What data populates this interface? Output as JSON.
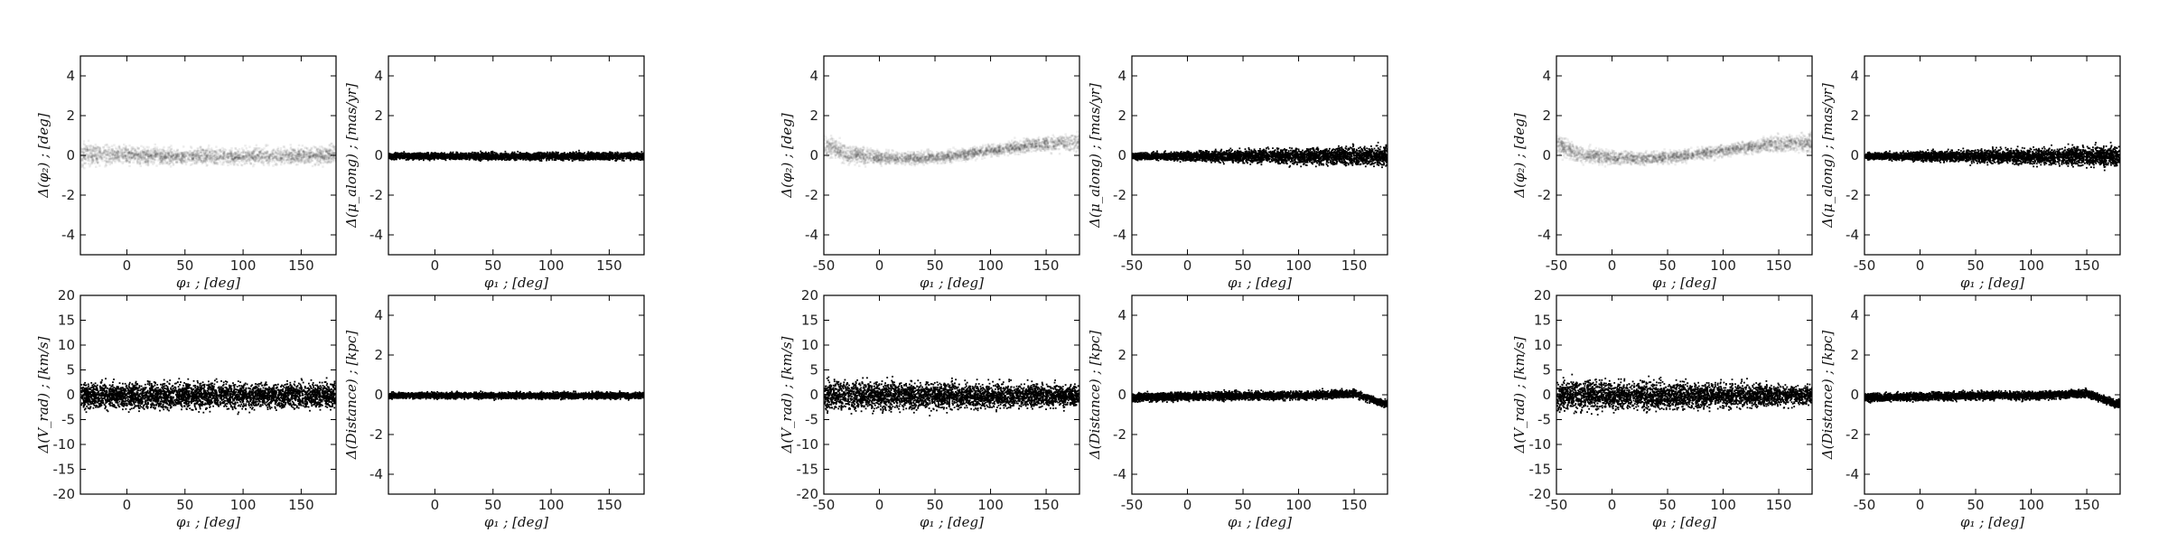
{
  "figure": {
    "label_phi1": "φ₁ ; [deg]",
    "label_dphi2": "Δ(φ₂) ; [deg]",
    "label_dmu": "Δ(μ_along) ; [mas/yr]",
    "label_dvrad": "Δ(V_rad) ; [km/s]",
    "label_ddist": "Δ(Distance) ; [kpc]"
  },
  "chart_data": [
    {
      "type": "heatmap",
      "group": 1,
      "panel": "phi2-residual",
      "xlabel": "φ₁ ; [deg]",
      "ylabel": "Δ(φ₂) ; [deg]",
      "xlim": [
        -40,
        180
      ],
      "ylim": [
        -5,
        5
      ],
      "xticks": [
        0,
        50,
        100,
        150
      ],
      "yticks": [
        -4,
        -2,
        0,
        2,
        4
      ],
      "residual_curve": {
        "x": [
          -40,
          0,
          50,
          100,
          150,
          180
        ],
        "y": [
          0.1,
          0.05,
          0,
          0,
          0.05,
          0.1
        ]
      },
      "spread": [
        0.6,
        0.4,
        0.4,
        0.4,
        0.4,
        0.5
      ]
    },
    {
      "type": "scatter",
      "group": 1,
      "panel": "mu-along-residual",
      "xlabel": "φ₁ ; [deg]",
      "ylabel": "Δ(μ_along) ; [mas/yr]",
      "xlim": [
        -40,
        180
      ],
      "ylim": [
        -5,
        5
      ],
      "xticks": [
        0,
        50,
        100,
        150
      ],
      "yticks": [
        -4,
        -2,
        0,
        2,
        4
      ],
      "residual_curve": {
        "x": [
          -40,
          180
        ],
        "y": [
          0,
          0
        ]
      },
      "spread": [
        0.15,
        0.2
      ]
    },
    {
      "type": "scatter",
      "group": 1,
      "panel": "vrad-residual",
      "xlabel": "φ₁ ; [deg]",
      "ylabel": "Δ(V_rad) ; [km/s]",
      "xlim": [
        -40,
        180
      ],
      "ylim": [
        -20,
        20
      ],
      "xticks": [
        0,
        50,
        100,
        150
      ],
      "yticks": [
        -20,
        -15,
        -10,
        -5,
        0,
        5,
        10,
        15,
        20
      ],
      "residual_curve": {
        "x": [
          -40,
          180
        ],
        "y": [
          0,
          0
        ]
      },
      "spread": [
        2.5,
        2.5
      ]
    },
    {
      "type": "scatter",
      "group": 1,
      "panel": "distance-residual",
      "xlabel": "φ₁ ; [deg]",
      "ylabel": "Δ(Distance) ; [kpc]",
      "xlim": [
        -40,
        180
      ],
      "ylim": [
        -5,
        5
      ],
      "xticks": [
        0,
        50,
        100,
        150
      ],
      "yticks": [
        -4,
        -2,
        0,
        2,
        4
      ],
      "residual_curve": {
        "x": [
          -40,
          180
        ],
        "y": [
          0,
          0
        ]
      },
      "spread": [
        0.15,
        0.15
      ]
    },
    {
      "type": "heatmap",
      "group": 2,
      "panel": "phi2-residual",
      "xlabel": "φ₁ ; [deg]",
      "ylabel": "Δ(φ₂) ; [deg]",
      "xlim": [
        -50,
        180
      ],
      "ylim": [
        -5,
        5
      ],
      "xticks": [
        -50,
        0,
        50,
        100,
        150
      ],
      "yticks": [
        -4,
        -2,
        0,
        2,
        4
      ],
      "residual_curve": {
        "x": [
          -50,
          -30,
          0,
          25,
          60,
          100,
          140,
          175
        ],
        "y": [
          0.6,
          0.1,
          -0.05,
          -0.1,
          0,
          0.3,
          0.6,
          0.7
        ]
      },
      "spread": [
        0.5,
        0.4,
        0.3,
        0.3,
        0.3,
        0.3,
        0.4,
        0.5
      ]
    },
    {
      "type": "scatter",
      "group": 2,
      "panel": "mu-along-residual",
      "xlabel": "φ₁ ; [deg]",
      "ylabel": "Δ(μ_along) ; [mas/yr]",
      "xlim": [
        -50,
        180
      ],
      "ylim": [
        -5,
        5
      ],
      "xticks": [
        -50,
        0,
        50,
        100,
        150
      ],
      "yticks": [
        -4,
        -2,
        0,
        2,
        4
      ],
      "residual_curve": {
        "x": [
          -50,
          175
        ],
        "y": [
          0,
          0
        ]
      },
      "spread": [
        0.15,
        0.5
      ]
    },
    {
      "type": "scatter",
      "group": 2,
      "panel": "vrad-residual",
      "xlabel": "φ₁ ; [deg]",
      "ylabel": "Δ(V_rad) ; [km/s]",
      "xlim": [
        -50,
        180
      ],
      "ylim": [
        -20,
        20
      ],
      "xticks": [
        -50,
        0,
        50,
        100,
        150
      ],
      "yticks": [
        -20,
        -15,
        -10,
        -5,
        0,
        5,
        10,
        15,
        20
      ],
      "residual_curve": {
        "x": [
          -50,
          175
        ],
        "y": [
          0,
          0
        ]
      },
      "spread": [
        3,
        2
      ]
    },
    {
      "type": "scatter",
      "group": 2,
      "panel": "distance-residual",
      "xlabel": "φ₁ ; [deg]",
      "ylabel": "Δ(Distance) ; [kpc]",
      "xlim": [
        -50,
        180
      ],
      "ylim": [
        -5,
        5
      ],
      "xticks": [
        -50,
        0,
        50,
        100,
        150
      ],
      "yticks": [
        -4,
        -2,
        0,
        2,
        4
      ],
      "residual_curve": {
        "x": [
          -50,
          0,
          50,
          100,
          150,
          175
        ],
        "y": [
          -0.1,
          -0.05,
          0,
          0,
          0.1,
          -0.4
        ]
      },
      "spread": [
        0.2,
        0.2
      ]
    },
    {
      "type": "heatmap",
      "group": 3,
      "panel": "phi2-residual",
      "xlabel": "φ₁ ; [deg]",
      "ylabel": "Δ(φ₂) ; [deg]",
      "xlim": [
        -50,
        180
      ],
      "ylim": [
        -5,
        5
      ],
      "xticks": [
        -50,
        0,
        50,
        100,
        150
      ],
      "yticks": [
        -4,
        -2,
        0,
        2,
        4
      ],
      "residual_curve": {
        "x": [
          -50,
          -30,
          0,
          25,
          60,
          100,
          140,
          175
        ],
        "y": [
          0.6,
          0.1,
          -0.05,
          -0.1,
          0,
          0.3,
          0.6,
          0.7
        ]
      },
      "spread": [
        0.5,
        0.4,
        0.3,
        0.3,
        0.3,
        0.3,
        0.4,
        0.5
      ]
    },
    {
      "type": "scatter",
      "group": 3,
      "panel": "mu-along-residual",
      "xlabel": "φ₁ ; [deg]",
      "ylabel": "Δ(μ_along) ; [mas/yr]",
      "xlim": [
        -50,
        180
      ],
      "ylim": [
        -5,
        5
      ],
      "xticks": [
        -50,
        0,
        50,
        100,
        150
      ],
      "yticks": [
        -4,
        -2,
        0,
        2,
        4
      ],
      "residual_curve": {
        "x": [
          -50,
          175
        ],
        "y": [
          0,
          0
        ]
      },
      "spread": [
        0.15,
        0.5
      ]
    },
    {
      "type": "scatter",
      "group": 3,
      "panel": "vrad-residual",
      "xlabel": "φ₁ ; [deg]",
      "ylabel": "Δ(V_rad) ; [km/s]",
      "xlim": [
        -50,
        180
      ],
      "ylim": [
        -20,
        20
      ],
      "xticks": [
        -50,
        0,
        50,
        100,
        150
      ],
      "yticks": [
        -20,
        -15,
        -10,
        -5,
        0,
        5,
        10,
        15,
        20
      ],
      "residual_curve": {
        "x": [
          -50,
          175
        ],
        "y": [
          0,
          0
        ]
      },
      "spread": [
        3,
        2
      ]
    },
    {
      "type": "scatter",
      "group": 3,
      "panel": "distance-residual",
      "xlabel": "φ₁ ; [deg]",
      "ylabel": "Δ(Distance) ; [kpc]",
      "xlim": [
        -50,
        180
      ],
      "ylim": [
        -5,
        5
      ],
      "xticks": [
        -50,
        0,
        50,
        100,
        150
      ],
      "yticks": [
        -4,
        -2,
        0,
        2,
        4
      ],
      "residual_curve": {
        "x": [
          -50,
          0,
          50,
          100,
          150,
          175
        ],
        "y": [
          -0.1,
          -0.05,
          0,
          0,
          0.1,
          -0.4
        ]
      },
      "spread": [
        0.2,
        0.2
      ]
    }
  ]
}
